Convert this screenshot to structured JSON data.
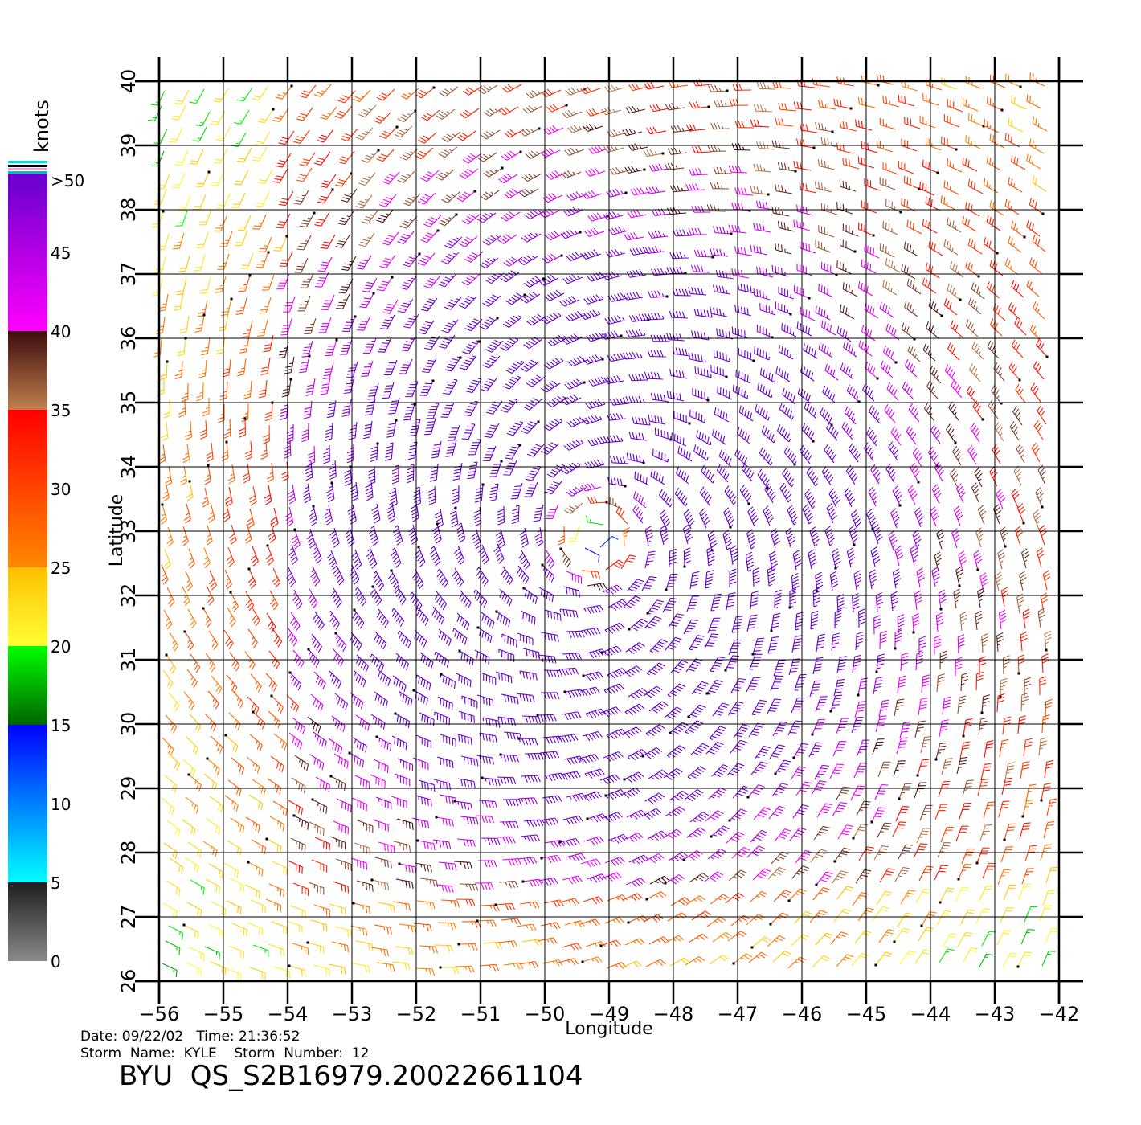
{
  "map": {
    "lon_min": -56,
    "lon_max": -42,
    "lat_min": 26,
    "lat_max": 40,
    "lon_ticks": [
      "−56",
      "−55",
      "−54",
      "−53",
      "−52",
      "−51",
      "−50",
      "−49",
      "−48",
      "−47",
      "−46",
      "−45",
      "−44",
      "−43",
      "−42"
    ],
    "lat_ticks": [
      "26",
      "27",
      "28",
      "29",
      "30",
      "31",
      "32",
      "33",
      "34",
      "35",
      "36",
      "37",
      "38",
      "39",
      "40"
    ],
    "xlabel": "Longitude",
    "ylabel": "Latitude",
    "storm_center": {
      "lon": -49.2,
      "lat": 32.9
    },
    "field": "wind barbs (knots)"
  },
  "legend": {
    "unit": "knots",
    "labels": [
      ">50",
      "45",
      "40",
      "35",
      "30",
      "25",
      "20",
      "15",
      "10",
      "5",
      "0"
    ],
    "bins": [
      {
        "from": 0,
        "to": 5,
        "color_top": "#1e1e1e",
        "color_bottom": "#8a8a8a"
      },
      {
        "from": 5,
        "to": 15,
        "color_top": "#0000ff",
        "color_bottom": "#00ffff"
      },
      {
        "from": 15,
        "to": 20,
        "color_top": "#00ff00",
        "color_bottom": "#006400"
      },
      {
        "from": 20,
        "to": 25,
        "color_top": "#ffc000",
        "color_bottom": "#ffff33"
      },
      {
        "from": 25,
        "to": 35,
        "color_top": "#ff0000",
        "color_bottom": "#ff8800"
      },
      {
        "from": 35,
        "to": 40,
        "color_top": "#3d0c0c",
        "color_bottom": "#c08050"
      },
      {
        "from": 40,
        "to": 50,
        "color_top": "#6600cc",
        "color_bottom": "#ff00ff"
      }
    ]
  },
  "info": {
    "date_line": "Date: 09/22/02   Time: 21:36:52",
    "storm_line": "Storm  Name:  KYLE    Storm  Number:  12",
    "product": "BYU  QS_S2B16979.20022661104"
  }
}
